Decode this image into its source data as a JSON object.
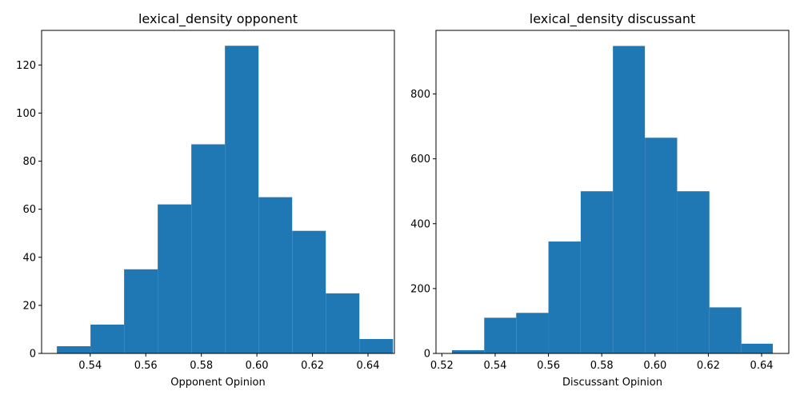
{
  "chart_data": [
    {
      "type": "bar",
      "title": "lexical_density opponent",
      "xlabel": "Opponent Opinion",
      "ylabel": "",
      "xlim": [
        0.5225,
        0.6495
      ],
      "ylim": [
        0,
        134.4
      ],
      "xticks": [
        0.54,
        0.56,
        0.58,
        0.6,
        0.62,
        0.64
      ],
      "xtick_labels": [
        "0.54",
        "0.56",
        "0.58",
        "0.60",
        "0.62",
        "0.64"
      ],
      "yticks": [
        0,
        20,
        40,
        60,
        80,
        100,
        120
      ],
      "ytick_labels": [
        "0",
        "20",
        "40",
        "60",
        "80",
        "100",
        "120"
      ],
      "bin_edges": [
        0.528,
        0.5401,
        0.5522,
        0.5643,
        0.5764,
        0.5885,
        0.6006,
        0.6127,
        0.6248,
        0.6369,
        0.649
      ],
      "counts": [
        3,
        12,
        35,
        62,
        87,
        128,
        65,
        51,
        25,
        6
      ],
      "color": "#1f77b4"
    },
    {
      "type": "bar",
      "title": "lexical_density discussant",
      "xlabel": "Discussant Opinion",
      "ylabel": "",
      "xlim": [
        0.5178,
        0.6502
      ],
      "ylim": [
        0,
        996
      ],
      "xticks": [
        0.52,
        0.54,
        0.56,
        0.58,
        0.6,
        0.62,
        0.64
      ],
      "xtick_labels": [
        "0.52",
        "0.54",
        "0.56",
        "0.58",
        "0.60",
        "0.62",
        "0.64"
      ],
      "yticks": [
        0,
        200,
        400,
        600,
        800
      ],
      "ytick_labels": [
        "0",
        "200",
        "400",
        "600",
        "800"
      ],
      "bin_edges": [
        0.5238,
        0.5359,
        0.5479,
        0.56,
        0.5721,
        0.5842,
        0.5962,
        0.6083,
        0.6204,
        0.6324,
        0.6442
      ],
      "counts": [
        10,
        110,
        125,
        345,
        500,
        948,
        665,
        500,
        142,
        30
      ],
      "color": "#1f77b4"
    }
  ]
}
